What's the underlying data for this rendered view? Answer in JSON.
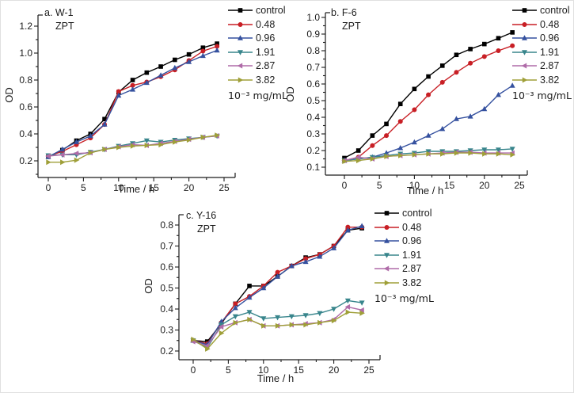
{
  "figure": {
    "background": "#ffffff",
    "axis_color": "#1c1c1c",
    "legend_note": "10⁻³ mg/mL"
  },
  "chart_data": [
    {
      "id": "a",
      "type": "line",
      "panel_label": "a. W-1",
      "treatment": "ZPT",
      "xlabel": "Time / h",
      "ylabel": "OD",
      "x": [
        0,
        2,
        4,
        6,
        8,
        10,
        12,
        14,
        16,
        18,
        20,
        22,
        24
      ],
      "xticks": [
        0,
        5,
        10,
        15,
        20,
        25
      ],
      "x_minor_step": 2.5,
      "yticks": [
        0.2,
        0.4,
        0.6,
        0.8,
        1.0,
        1.2
      ],
      "ytick_labels": [
        "0.2",
        "0.4",
        "0.6",
        "0.8",
        "1.0",
        "1.2"
      ],
      "y_minor_step": 0.1,
      "xlim": [
        -1.5,
        26.6
      ],
      "ylim": [
        0.075,
        1.285
      ],
      "grid": false,
      "legend_position": "right-top",
      "legend_note": "10⁻³ mg/mL",
      "series": [
        {
          "name": "control",
          "marker": "square",
          "color": "#000000",
          "values": [
            0.23,
            0.28,
            0.35,
            0.4,
            0.51,
            0.71,
            0.8,
            0.855,
            0.9,
            0.95,
            0.99,
            1.04,
            1.07
          ]
        },
        {
          "name": "0.48",
          "marker": "circle",
          "color": "#c81f25",
          "values": [
            0.235,
            0.27,
            0.32,
            0.37,
            0.47,
            0.715,
            0.76,
            0.785,
            0.825,
            0.875,
            0.945,
            1.015,
            1.05
          ]
        },
        {
          "name": "0.96",
          "marker": "triangle-up",
          "color": "#35519f",
          "values": [
            0.23,
            0.285,
            0.34,
            0.385,
            0.47,
            0.685,
            0.73,
            0.78,
            0.835,
            0.89,
            0.935,
            0.98,
            1.02
          ]
        },
        {
          "name": "1.91",
          "marker": "triangle-down",
          "color": "#38858c",
          "values": [
            0.24,
            0.245,
            0.245,
            0.265,
            0.285,
            0.31,
            0.33,
            0.35,
            0.34,
            0.355,
            0.365,
            0.375,
            0.385
          ]
        },
        {
          "name": "2.87",
          "marker": "triangle-left",
          "color": "#af6ba8",
          "values": [
            0.235,
            0.245,
            0.255,
            0.26,
            0.285,
            0.305,
            0.32,
            0.315,
            0.33,
            0.345,
            0.36,
            0.375,
            0.385
          ]
        },
        {
          "name": "3.82",
          "marker": "triangle-right",
          "color": "#9f9f38",
          "values": [
            0.19,
            0.19,
            0.205,
            0.26,
            0.285,
            0.3,
            0.31,
            0.315,
            0.32,
            0.34,
            0.355,
            0.375,
            0.39
          ]
        }
      ]
    },
    {
      "id": "b",
      "type": "line",
      "panel_label": "b. F-6",
      "treatment": "ZPT",
      "xlabel": "Time / h",
      "ylabel": "OD",
      "x": [
        0,
        2,
        4,
        6,
        8,
        10,
        12,
        14,
        16,
        18,
        20,
        22,
        24
      ],
      "xticks": [
        0,
        5,
        10,
        15,
        20,
        25
      ],
      "x_minor_step": 2.5,
      "yticks": [
        0.1,
        0.2,
        0.3,
        0.4,
        0.5,
        0.6,
        0.7,
        0.8,
        0.9,
        1.0
      ],
      "ytick_labels": [
        "0.1",
        "0.2",
        "0.3",
        "0.4",
        "0.5",
        "0.6",
        "0.7",
        "0.8",
        "0.9",
        "1.0"
      ],
      "y_minor_step": 0.05,
      "xlim": [
        -1.5,
        26.6
      ],
      "ylim": [
        0.05,
        1.035
      ],
      "grid": false,
      "legend_position": "right-top",
      "legend_note": "10⁻³ mg/mL",
      "series": [
        {
          "name": "control",
          "marker": "square",
          "color": "#000000",
          "values": [
            0.155,
            0.2,
            0.29,
            0.36,
            0.48,
            0.57,
            0.645,
            0.71,
            0.775,
            0.81,
            0.84,
            0.875,
            0.91
          ]
        },
        {
          "name": "0.48",
          "marker": "circle",
          "color": "#c81f25",
          "values": [
            0.14,
            0.16,
            0.23,
            0.29,
            0.375,
            0.445,
            0.535,
            0.61,
            0.67,
            0.725,
            0.765,
            0.8,
            0.83
          ]
        },
        {
          "name": "0.96",
          "marker": "triangle-up",
          "color": "#35519f",
          "values": [
            0.14,
            0.15,
            0.16,
            0.185,
            0.215,
            0.25,
            0.29,
            0.33,
            0.39,
            0.405,
            0.45,
            0.535,
            0.59
          ]
        },
        {
          "name": "1.91",
          "marker": "triangle-down",
          "color": "#38858c",
          "values": [
            0.14,
            0.15,
            0.16,
            0.17,
            0.18,
            0.185,
            0.195,
            0.195,
            0.195,
            0.2,
            0.205,
            0.205,
            0.21
          ]
        },
        {
          "name": "2.87",
          "marker": "triangle-left",
          "color": "#af6ba8",
          "values": [
            0.14,
            0.16,
            0.15,
            0.165,
            0.17,
            0.175,
            0.18,
            0.185,
            0.19,
            0.19,
            0.185,
            0.185,
            0.185
          ]
        },
        {
          "name": "3.82",
          "marker": "triangle-right",
          "color": "#9f9f38",
          "values": [
            0.135,
            0.14,
            0.15,
            0.165,
            0.17,
            0.175,
            0.18,
            0.18,
            0.185,
            0.185,
            0.18,
            0.18,
            0.175
          ]
        }
      ]
    },
    {
      "id": "c",
      "type": "line",
      "panel_label": "c. Y-16",
      "treatment": "ZPT",
      "xlabel": "Time / h",
      "ylabel": "OD",
      "x": [
        0,
        2,
        4,
        6,
        8,
        10,
        12,
        14,
        16,
        18,
        20,
        22,
        24
      ],
      "xticks": [
        0,
        5,
        10,
        15,
        20,
        25
      ],
      "x_minor_step": 2.5,
      "yticks": [
        0.2,
        0.3,
        0.4,
        0.5,
        0.6,
        0.7,
        0.8
      ],
      "ytick_labels": [
        "0.2",
        "0.3",
        "0.4",
        "0.5",
        "0.6",
        "0.7",
        "0.8"
      ],
      "y_minor_step": 0.05,
      "xlim": [
        -1.5,
        26.6
      ],
      "ylim": [
        0.155,
        0.85
      ],
      "grid": false,
      "legend_position": "right-top",
      "legend_note": "10⁻³ mg/mL",
      "series": [
        {
          "name": "control",
          "marker": "square",
          "color": "#000000",
          "values": [
            0.25,
            0.245,
            0.33,
            0.425,
            0.51,
            0.51,
            0.555,
            0.605,
            0.645,
            0.66,
            0.7,
            0.775,
            0.785
          ]
        },
        {
          "name": "0.48",
          "marker": "circle",
          "color": "#c81f25",
          "values": [
            0.25,
            0.235,
            0.335,
            0.425,
            0.46,
            0.51,
            0.575,
            0.605,
            0.64,
            0.66,
            0.7,
            0.79,
            0.79
          ]
        },
        {
          "name": "0.96",
          "marker": "triangle-up",
          "color": "#35519f",
          "values": [
            0.25,
            0.23,
            0.34,
            0.405,
            0.455,
            0.5,
            0.555,
            0.605,
            0.625,
            0.65,
            0.69,
            0.775,
            0.795
          ]
        },
        {
          "name": "1.91",
          "marker": "triangle-down",
          "color": "#38858c",
          "values": [
            0.25,
            0.215,
            0.325,
            0.365,
            0.385,
            0.355,
            0.36,
            0.365,
            0.37,
            0.38,
            0.4,
            0.44,
            0.43
          ]
        },
        {
          "name": "2.87",
          "marker": "triangle-left",
          "color": "#af6ba8",
          "values": [
            0.245,
            0.225,
            0.315,
            0.335,
            0.35,
            0.32,
            0.32,
            0.325,
            0.33,
            0.335,
            0.35,
            0.41,
            0.395
          ]
        },
        {
          "name": "3.82",
          "marker": "triangle-right",
          "color": "#9f9f38",
          "values": [
            0.255,
            0.21,
            0.285,
            0.335,
            0.35,
            0.32,
            0.32,
            0.325,
            0.325,
            0.335,
            0.345,
            0.385,
            0.38
          ]
        }
      ]
    }
  ]
}
